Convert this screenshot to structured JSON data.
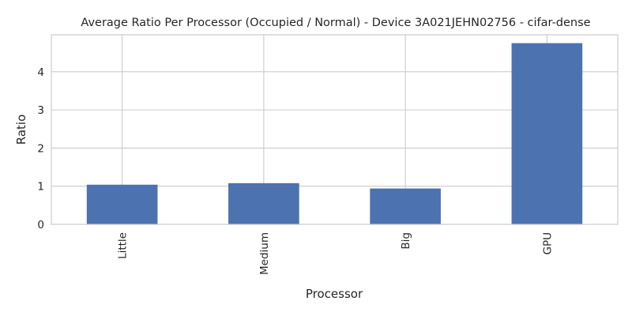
{
  "chart_data": {
    "type": "bar",
    "title": "Average Ratio Per Processor (Occupied / Normal) - Device 3A021JEHN02756 - cifar-dense",
    "xlabel": "Processor",
    "ylabel": "Ratio",
    "categories": [
      "Little",
      "Medium",
      "Big",
      "GPU"
    ],
    "values": [
      1.04,
      1.08,
      0.94,
      4.75
    ],
    "ylim": [
      0,
      4.97
    ],
    "yticks": [
      0,
      1,
      2,
      3,
      4
    ],
    "grid": true,
    "bar_color": "#4c72b0",
    "grid_color": "#cccccc",
    "frame_color": "#cccccc"
  }
}
